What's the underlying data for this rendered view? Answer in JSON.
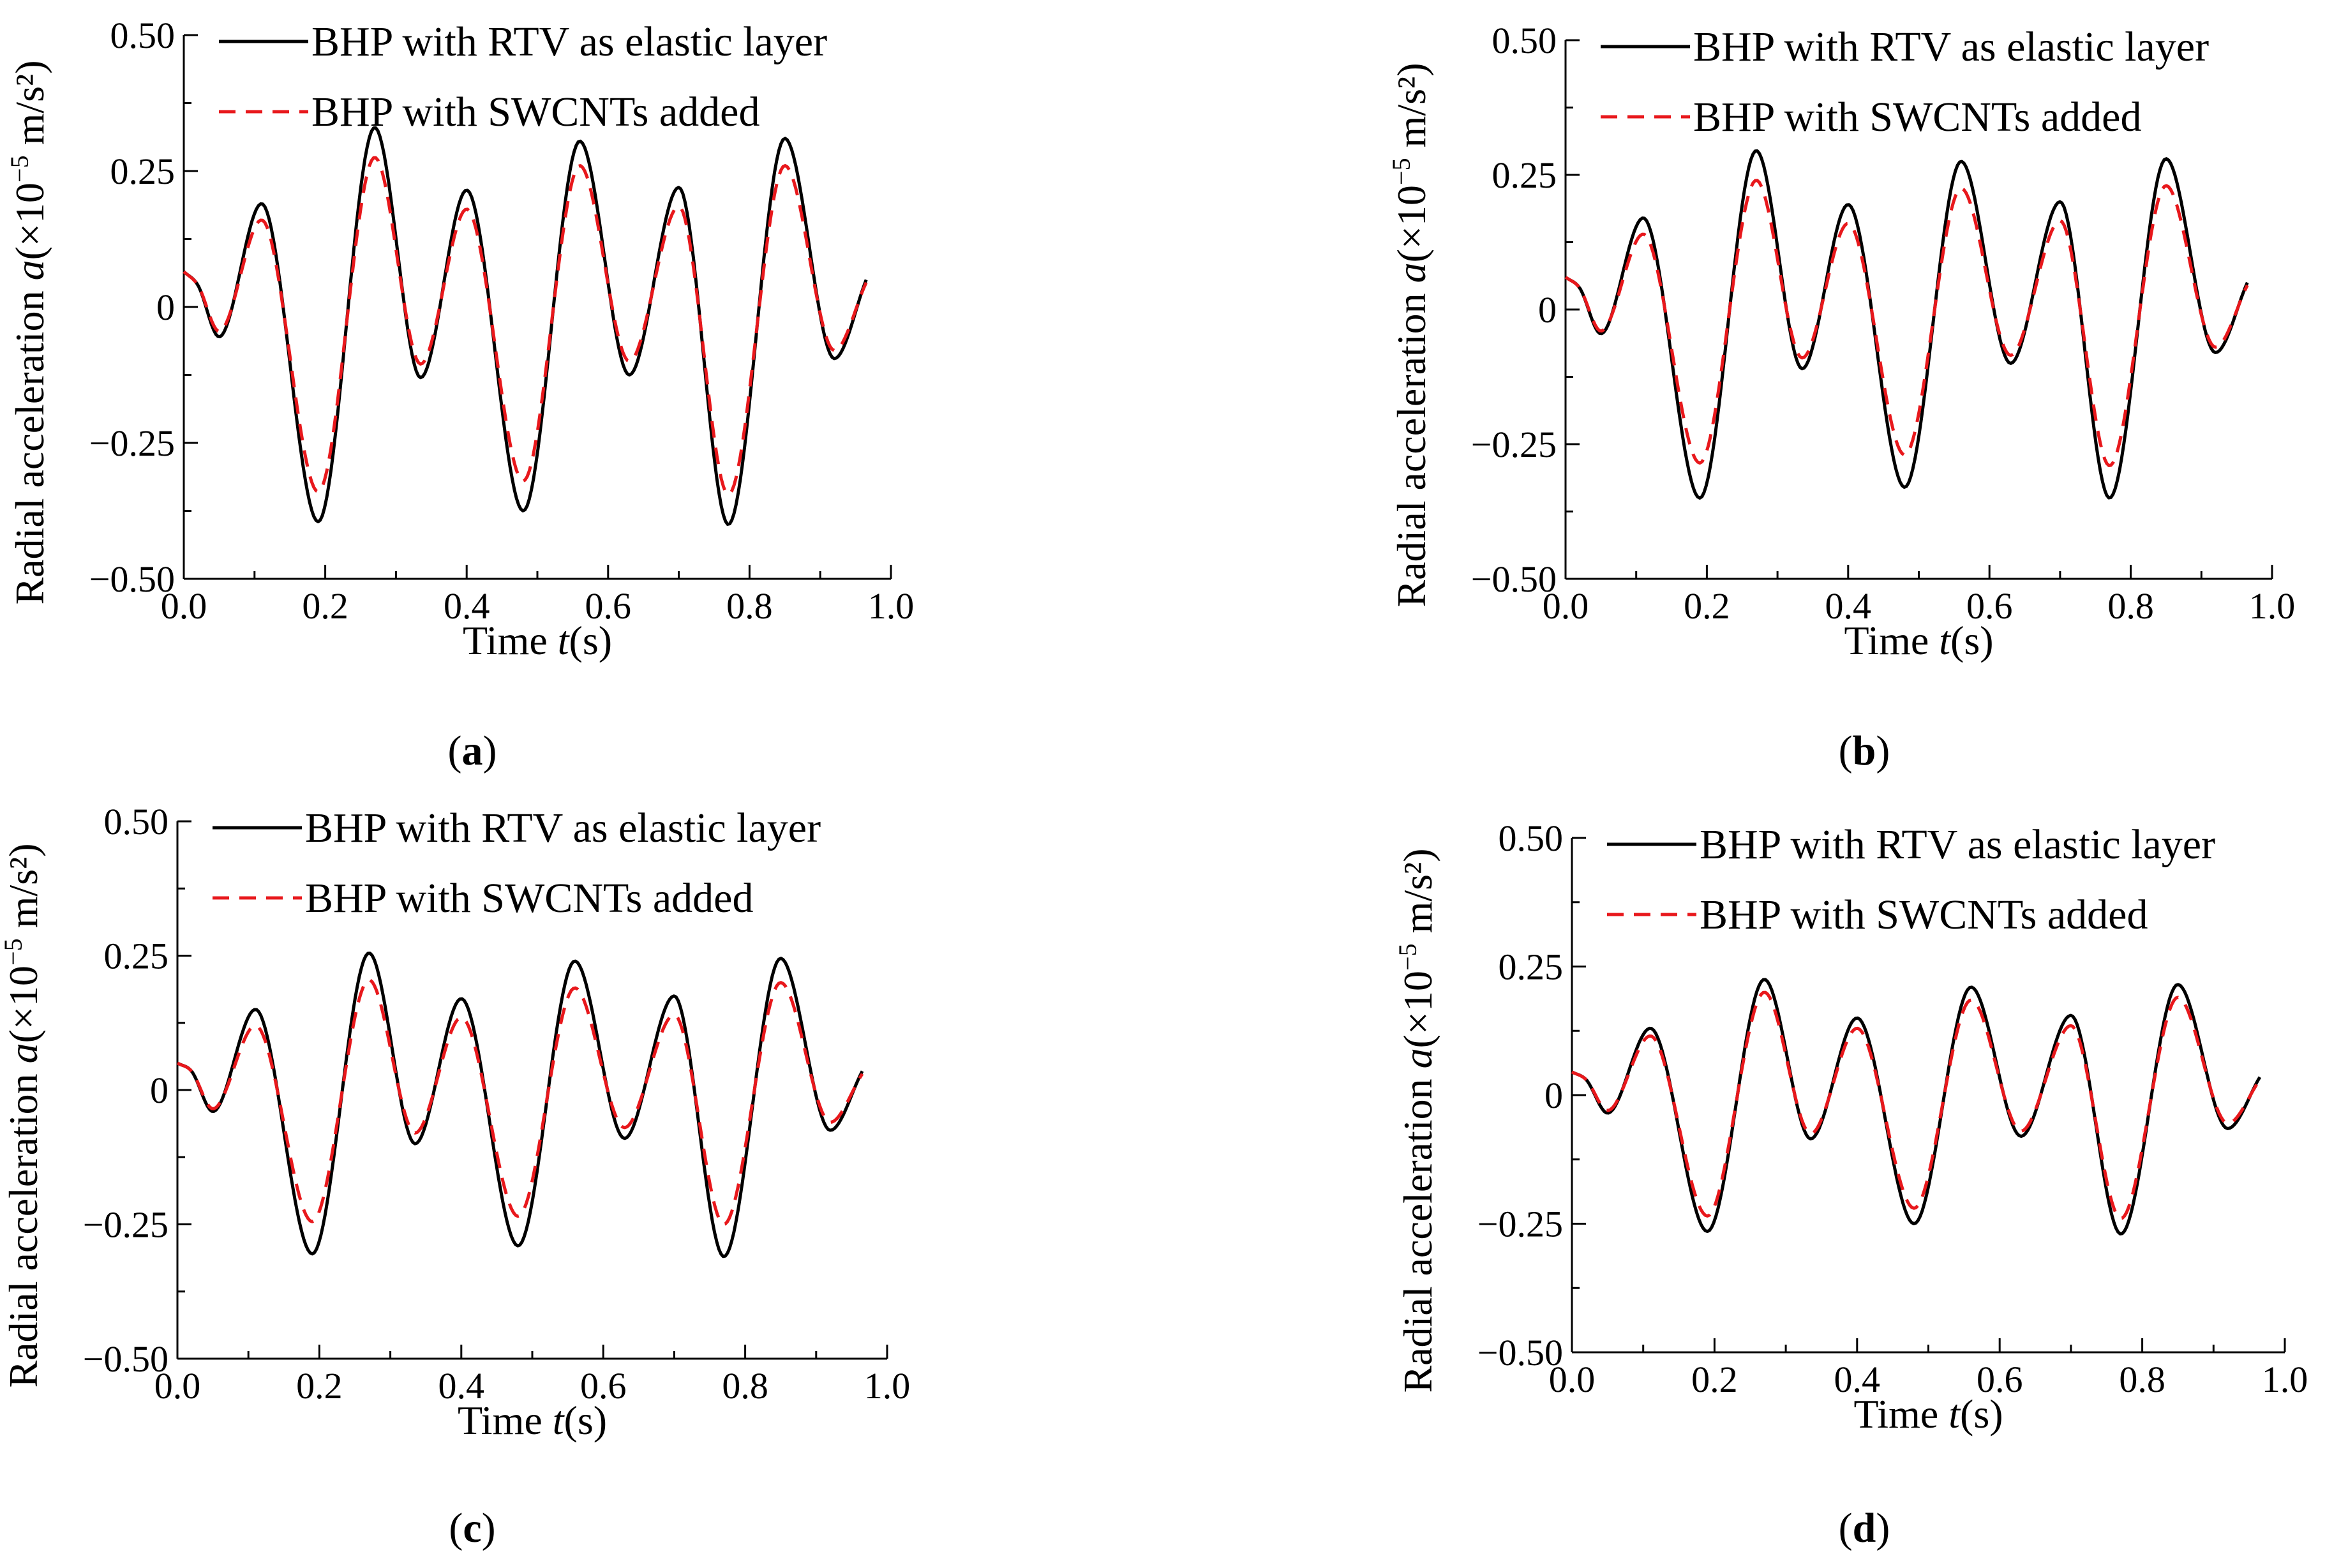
{
  "chart_data": [
    {
      "type": "line",
      "caption_letter": "a",
      "caption_open": "(",
      "caption_close": ")",
      "xlabel": {
        "pre": "Time ",
        "var": "t",
        "post": "(s)"
      },
      "ylabel": {
        "pre": "Radial acceleration ",
        "var": "a",
        "mid": "(×10",
        "exp": "−5",
        "post": " m/s²)"
      },
      "x_ticks": [
        "0.0",
        "0.2",
        "0.4",
        "0.6",
        "0.8",
        "1.0"
      ],
      "y_ticks": [
        "0.50",
        "0.25",
        "0",
        "−0.25",
        "−0.50"
      ],
      "xlim": [
        0,
        1.0
      ],
      "ylim": [
        -0.5,
        0.5
      ],
      "legend": "top-left",
      "series": [
        {
          "name": "BHP with RTV as elastic layer",
          "style": "solid",
          "color": "#000000",
          "x": [
            0.0,
            0.02,
            0.05,
            0.11,
            0.19,
            0.27,
            0.335,
            0.4,
            0.48,
            0.56,
            0.63,
            0.7,
            0.77,
            0.85,
            0.92,
            0.965
          ],
          "y": [
            0.065,
            0.04,
            -0.055,
            0.19,
            -0.395,
            0.33,
            -0.13,
            0.215,
            -0.375,
            0.305,
            -0.125,
            0.22,
            -0.4,
            0.31,
            -0.095,
            0.05
          ]
        },
        {
          "name": "BHP with SWCNTs added",
          "style": "dashed",
          "color": "#e8181c",
          "x": [
            0.0,
            0.02,
            0.05,
            0.11,
            0.19,
            0.27,
            0.335,
            0.4,
            0.48,
            0.56,
            0.63,
            0.7,
            0.77,
            0.85,
            0.92,
            0.965
          ],
          "y": [
            0.065,
            0.04,
            -0.045,
            0.16,
            -0.34,
            0.275,
            -0.105,
            0.18,
            -0.32,
            0.26,
            -0.1,
            0.185,
            -0.345,
            0.26,
            -0.08,
            0.045
          ]
        }
      ]
    },
    {
      "type": "line",
      "caption_letter": "b",
      "caption_open": "(",
      "caption_close": ")",
      "xlabel": {
        "pre": "Time ",
        "var": "t",
        "post": "(s)"
      },
      "ylabel": {
        "pre": "Radial acceleration ",
        "var": "a",
        "mid": "(×10",
        "exp": "−5",
        "post": " m/s²)"
      },
      "x_ticks": [
        "0.0",
        "0.2",
        "0.4",
        "0.6",
        "0.8",
        "1.0"
      ],
      "y_ticks": [
        "0.50",
        "0.25",
        "0",
        "−0.25",
        "−0.50"
      ],
      "xlim": [
        0,
        1.0
      ],
      "ylim": [
        -0.5,
        0.5
      ],
      "legend": "top-left",
      "series": [
        {
          "name": "BHP with RTV as elastic layer",
          "style": "solid",
          "color": "#000000",
          "x": [
            0.0,
            0.02,
            0.05,
            0.11,
            0.19,
            0.27,
            0.335,
            0.4,
            0.48,
            0.56,
            0.63,
            0.7,
            0.77,
            0.85,
            0.92,
            0.965
          ],
          "y": [
            0.06,
            0.04,
            -0.045,
            0.17,
            -0.35,
            0.295,
            -0.11,
            0.195,
            -0.33,
            0.275,
            -0.1,
            0.2,
            -0.35,
            0.28,
            -0.08,
            0.05
          ]
        },
        {
          "name": "BHP with SWCNTs added",
          "style": "dashed",
          "color": "#e8181c",
          "x": [
            0.0,
            0.02,
            0.05,
            0.11,
            0.19,
            0.27,
            0.335,
            0.4,
            0.48,
            0.56,
            0.63,
            0.7,
            0.77,
            0.85,
            0.92,
            0.965
          ],
          "y": [
            0.06,
            0.04,
            -0.04,
            0.14,
            -0.285,
            0.24,
            -0.09,
            0.16,
            -0.27,
            0.225,
            -0.085,
            0.165,
            -0.29,
            0.23,
            -0.07,
            0.045
          ]
        }
      ]
    },
    {
      "type": "line",
      "caption_letter": "c",
      "caption_open": "(",
      "caption_close": ")",
      "xlabel": {
        "pre": "Time ",
        "var": "t",
        "post": "(s)"
      },
      "ylabel": {
        "pre": "Radial acceleration ",
        "var": "a",
        "mid": "(×10",
        "exp": "−5",
        "post": " m/s²)"
      },
      "x_ticks": [
        "0.0",
        "0.2",
        "0.4",
        "0.6",
        "0.8",
        "1.0"
      ],
      "y_ticks": [
        "0.50",
        "0.25",
        "0",
        "−0.25",
        "−0.50"
      ],
      "xlim": [
        0,
        1.0
      ],
      "ylim": [
        -0.5,
        0.5
      ],
      "legend": "top-left",
      "series": [
        {
          "name": "BHP with RTV as elastic layer",
          "style": "solid",
          "color": "#000000",
          "x": [
            0.0,
            0.02,
            0.05,
            0.11,
            0.19,
            0.27,
            0.335,
            0.4,
            0.48,
            0.56,
            0.63,
            0.7,
            0.77,
            0.85,
            0.92,
            0.965
          ],
          "y": [
            0.05,
            0.035,
            -0.04,
            0.15,
            -0.305,
            0.255,
            -0.1,
            0.17,
            -0.29,
            0.24,
            -0.09,
            0.175,
            -0.31,
            0.245,
            -0.075,
            0.035
          ]
        },
        {
          "name": "BHP with SWCNTs added",
          "style": "dashed",
          "color": "#e8181c",
          "x": [
            0.0,
            0.02,
            0.05,
            0.11,
            0.19,
            0.27,
            0.335,
            0.4,
            0.48,
            0.56,
            0.63,
            0.7,
            0.77,
            0.85,
            0.92,
            0.965
          ],
          "y": [
            0.05,
            0.035,
            -0.035,
            0.12,
            -0.245,
            0.205,
            -0.08,
            0.135,
            -0.235,
            0.19,
            -0.07,
            0.14,
            -0.25,
            0.2,
            -0.06,
            0.03
          ]
        }
      ]
    },
    {
      "type": "line",
      "caption_letter": "d",
      "caption_open": "(",
      "caption_close": ")",
      "xlabel": {
        "pre": "Time ",
        "var": "t",
        "post": "(s)"
      },
      "ylabel": {
        "pre": "Radial acceleration ",
        "var": "a",
        "mid": "(×10",
        "exp": "−5",
        "post": " m/s²)"
      },
      "x_ticks": [
        "0.0",
        "0.2",
        "0.4",
        "0.6",
        "0.8",
        "1.0"
      ],
      "y_ticks": [
        "0.50",
        "0.25",
        "0",
        "−0.25",
        "−0.50"
      ],
      "xlim": [
        0,
        1.0
      ],
      "ylim": [
        -0.5,
        0.5
      ],
      "legend": "top-left",
      "series": [
        {
          "name": "BHP with RTV as elastic layer",
          "style": "solid",
          "color": "#000000",
          "x": [
            0.0,
            0.02,
            0.05,
            0.11,
            0.19,
            0.27,
            0.335,
            0.4,
            0.48,
            0.56,
            0.63,
            0.7,
            0.77,
            0.85,
            0.92,
            0.965
          ],
          "y": [
            0.045,
            0.03,
            -0.035,
            0.13,
            -0.265,
            0.225,
            -0.085,
            0.15,
            -0.25,
            0.21,
            -0.08,
            0.155,
            -0.27,
            0.215,
            -0.065,
            0.035
          ]
        },
        {
          "name": "BHP with SWCNTs added",
          "style": "dashed",
          "color": "#e8181c",
          "x": [
            0.0,
            0.02,
            0.05,
            0.11,
            0.19,
            0.27,
            0.335,
            0.4,
            0.48,
            0.56,
            0.63,
            0.7,
            0.77,
            0.85,
            0.92,
            0.965
          ],
          "y": [
            0.045,
            0.03,
            -0.03,
            0.115,
            -0.235,
            0.2,
            -0.075,
            0.13,
            -0.22,
            0.185,
            -0.07,
            0.135,
            -0.24,
            0.19,
            -0.055,
            0.03
          ]
        }
      ]
    }
  ]
}
